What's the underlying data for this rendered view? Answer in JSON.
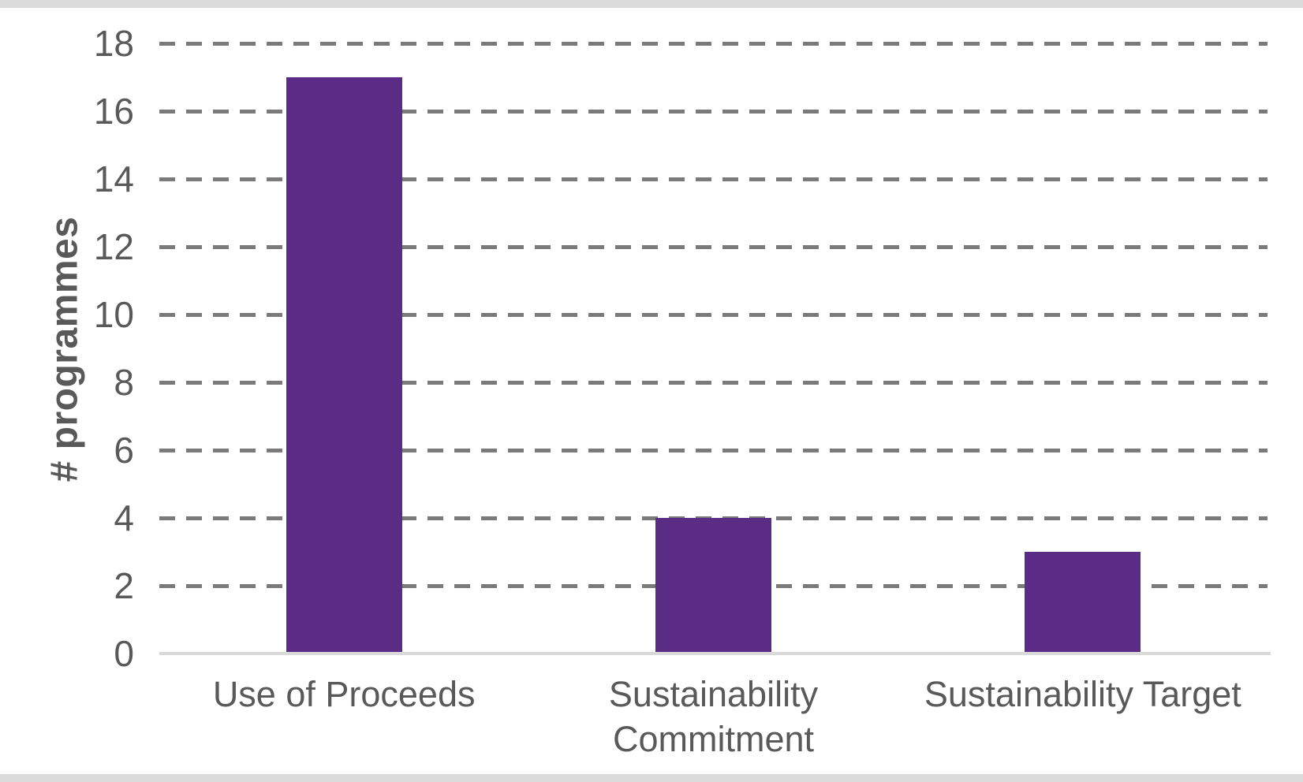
{
  "chart_data": {
    "type": "bar",
    "categories": [
      "Use of Proceeds",
      "Sustainability Commitment",
      "Sustainability Target"
    ],
    "values": [
      17,
      4,
      3
    ],
    "ylabel": "# programmes",
    "ylim": [
      0,
      18
    ],
    "yticks": [
      0,
      2,
      4,
      6,
      8,
      10,
      12,
      14,
      16,
      18
    ],
    "grid": "horizontal-dashed",
    "legend": "none",
    "colors": {
      "bar_fill": "#5b2c86",
      "text": "#595959",
      "gridline": "#7a7a7a",
      "axis_line": "#d9d9d9",
      "edge_strip": "#dbdbdb"
    }
  }
}
